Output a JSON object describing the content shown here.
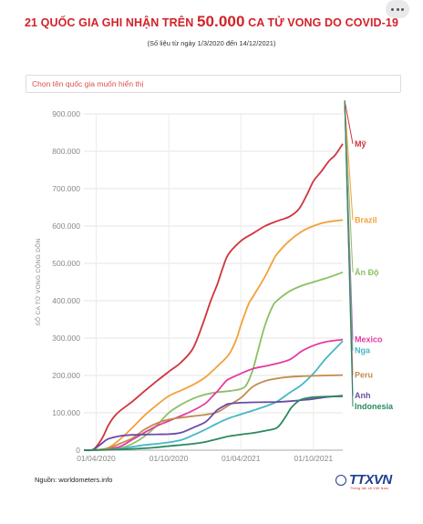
{
  "header": {
    "title_part1": "21 QUỐC GIA GHI NHẬN TRÊN ",
    "title_big": "50.000",
    "title_part2": " CA TỬ VONG DO COVID-19",
    "subtitle": "(Số liệu từ ngày 1/3/2020 đến 14/12/2021)"
  },
  "toolbar": {
    "more_icon": "more-horizontal-icon"
  },
  "selector": {
    "placeholder": "Chọn tên quốc gia muốn hiển thị"
  },
  "footer": {
    "source": "Nguồn: worldometers.info",
    "logo_text": "TTXVN",
    "logo_sub": "Thông tấn xã Việt Nam"
  },
  "chart_data": {
    "type": "line",
    "title": "21 QUỐC GIA GHI NHẬN TRÊN 50.000 CA TỬ VONG DO COVID-19",
    "subtitle": "(Số liệu từ ngày 1/3/2020 đến 14/12/2021)",
    "xlabel": "",
    "ylabel": "SỐ CA TỬ VONG CỘNG DỒN",
    "x_range": [
      "2020-03-01",
      "2021-12-14"
    ],
    "ylim": [
      0,
      900000
    ],
    "y_ticks": [
      0,
      100000,
      200000,
      300000,
      400000,
      500000,
      600000,
      700000,
      800000,
      900000
    ],
    "y_tick_labels": [
      "0",
      "100.000",
      "200.000",
      "300.000",
      "400.000",
      "500.000",
      "600.000",
      "700.000",
      "800.000",
      "900.000"
    ],
    "x_ticks": [
      "2020-04-01",
      "2020-10-01",
      "2021-04-01",
      "2021-10-01"
    ],
    "x_tick_labels": [
      "01/04/2020",
      "01/10/2020",
      "01/04/2021",
      "01/10/2021"
    ],
    "grid": true,
    "legend": "inline-right",
    "series": [
      {
        "name": "Mỹ",
        "color": "#d0343b",
        "points": [
          [
            "2020-03-01",
            0
          ],
          [
            "2020-03-25",
            2000
          ],
          [
            "2020-04-15",
            30000
          ],
          [
            "2020-05-01",
            65000
          ],
          [
            "2020-05-15",
            88000
          ],
          [
            "2020-06-01",
            106000
          ],
          [
            "2020-07-01",
            130000
          ],
          [
            "2020-08-01",
            158000
          ],
          [
            "2020-09-01",
            185000
          ],
          [
            "2020-10-01",
            210000
          ],
          [
            "2020-11-01",
            235000
          ],
          [
            "2020-12-01",
            272000
          ],
          [
            "2020-12-25",
            335000
          ],
          [
            "2021-01-15",
            400000
          ],
          [
            "2021-02-01",
            445000
          ],
          [
            "2021-02-15",
            490000
          ],
          [
            "2021-03-01",
            525000
          ],
          [
            "2021-04-01",
            560000
          ],
          [
            "2021-05-01",
            580000
          ],
          [
            "2021-06-01",
            600000
          ],
          [
            "2021-07-01",
            613000
          ],
          [
            "2021-08-01",
            625000
          ],
          [
            "2021-08-25",
            645000
          ],
          [
            "2021-09-15",
            685000
          ],
          [
            "2021-10-01",
            720000
          ],
          [
            "2021-10-20",
            745000
          ],
          [
            "2021-11-10",
            775000
          ],
          [
            "2021-11-25",
            790000
          ],
          [
            "2021-12-14",
            820000
          ]
        ]
      },
      {
        "name": "Brazil",
        "color": "#f2a13b",
        "points": [
          [
            "2020-03-01",
            0
          ],
          [
            "2020-04-01",
            1000
          ],
          [
            "2020-05-01",
            6000
          ],
          [
            "2020-06-01",
            30000
          ],
          [
            "2020-07-01",
            60000
          ],
          [
            "2020-08-01",
            93000
          ],
          [
            "2020-09-01",
            121000
          ],
          [
            "2020-10-01",
            145000
          ],
          [
            "2020-11-01",
            160000
          ],
          [
            "2020-12-01",
            175000
          ],
          [
            "2021-01-01",
            195000
          ],
          [
            "2021-02-01",
            225000
          ],
          [
            "2021-03-01",
            255000
          ],
          [
            "2021-03-20",
            295000
          ],
          [
            "2021-04-01",
            335000
          ],
          [
            "2021-04-20",
            390000
          ],
          [
            "2021-05-01",
            410000
          ],
          [
            "2021-06-01",
            465000
          ],
          [
            "2021-06-20",
            505000
          ],
          [
            "2021-07-01",
            525000
          ],
          [
            "2021-08-01",
            560000
          ],
          [
            "2021-09-01",
            585000
          ],
          [
            "2021-10-01",
            600000
          ],
          [
            "2021-11-01",
            610000
          ],
          [
            "2021-12-14",
            616000
          ]
        ]
      },
      {
        "name": "Ấn Độ",
        "color": "#8cc063",
        "points": [
          [
            "2020-03-01",
            0
          ],
          [
            "2020-04-01",
            500
          ],
          [
            "2020-05-01",
            3500
          ],
          [
            "2020-06-01",
            5500
          ],
          [
            "2020-07-01",
            17000
          ],
          [
            "2020-08-01",
            37000
          ],
          [
            "2020-09-01",
            66000
          ],
          [
            "2020-10-01",
            100000
          ],
          [
            "2020-11-01",
            122000
          ],
          [
            "2020-12-01",
            138000
          ],
          [
            "2021-01-01",
            149000
          ],
          [
            "2021-02-01",
            155000
          ],
          [
            "2021-03-01",
            158000
          ],
          [
            "2021-04-01",
            164000
          ],
          [
            "2021-04-15",
            175000
          ],
          [
            "2021-05-01",
            215000
          ],
          [
            "2021-05-15",
            270000
          ],
          [
            "2021-06-01",
            335000
          ],
          [
            "2021-06-20",
            385000
          ],
          [
            "2021-07-01",
            400000
          ],
          [
            "2021-08-01",
            425000
          ],
          [
            "2021-09-01",
            440000
          ],
          [
            "2021-10-01",
            450000
          ],
          [
            "2021-11-01",
            460000
          ],
          [
            "2021-12-14",
            476000
          ]
        ]
      },
      {
        "name": "Mexico",
        "color": "#e33ca0",
        "points": [
          [
            "2020-03-01",
            0
          ],
          [
            "2020-04-01",
            500
          ],
          [
            "2020-05-01",
            3000
          ],
          [
            "2020-06-01",
            10000
          ],
          [
            "2020-07-01",
            28000
          ],
          [
            "2020-08-01",
            47000
          ],
          [
            "2020-09-01",
            65000
          ],
          [
            "2020-10-01",
            78000
          ],
          [
            "2020-11-01",
            92000
          ],
          [
            "2020-12-01",
            106000
          ],
          [
            "2021-01-01",
            125000
          ],
          [
            "2021-01-20",
            145000
          ],
          [
            "2021-02-01",
            158000
          ],
          [
            "2021-02-20",
            182000
          ],
          [
            "2021-03-01",
            190000
          ],
          [
            "2021-04-01",
            205000
          ],
          [
            "2021-05-01",
            218000
          ],
          [
            "2021-06-01",
            225000
          ],
          [
            "2021-07-01",
            232000
          ],
          [
            "2021-08-01",
            242000
          ],
          [
            "2021-08-20",
            255000
          ],
          [
            "2021-09-01",
            265000
          ],
          [
            "2021-10-01",
            280000
          ],
          [
            "2021-11-01",
            290000
          ],
          [
            "2021-12-14",
            296000
          ]
        ]
      },
      {
        "name": "Nga",
        "color": "#45b7c4",
        "points": [
          [
            "2020-03-01",
            0
          ],
          [
            "2020-05-01",
            1000
          ],
          [
            "2020-06-01",
            4000
          ],
          [
            "2020-07-01",
            9000
          ],
          [
            "2020-08-01",
            14000
          ],
          [
            "2020-09-01",
            17000
          ],
          [
            "2020-10-01",
            21000
          ],
          [
            "2020-11-01",
            27000
          ],
          [
            "2020-12-01",
            40000
          ],
          [
            "2021-01-01",
            55000
          ],
          [
            "2021-02-01",
            72000
          ],
          [
            "2021-03-01",
            85000
          ],
          [
            "2021-04-01",
            96000
          ],
          [
            "2021-05-01",
            106000
          ],
          [
            "2021-06-01",
            117000
          ],
          [
            "2021-07-01",
            130000
          ],
          [
            "2021-08-01",
            153000
          ],
          [
            "2021-09-01",
            175000
          ],
          [
            "2021-10-01",
            205000
          ],
          [
            "2021-11-01",
            245000
          ],
          [
            "2021-12-14",
            292000
          ]
        ]
      },
      {
        "name": "Peru",
        "color": "#c18b4d",
        "points": [
          [
            "2020-03-01",
            0
          ],
          [
            "2020-04-01",
            500
          ],
          [
            "2020-05-01",
            5000
          ],
          [
            "2020-06-01",
            18000
          ],
          [
            "2020-07-01",
            32000
          ],
          [
            "2020-08-01",
            55000
          ],
          [
            "2020-09-01",
            72000
          ],
          [
            "2020-10-01",
            82000
          ],
          [
            "2020-11-01",
            87000
          ],
          [
            "2020-12-01",
            91000
          ],
          [
            "2021-01-01",
            95000
          ],
          [
            "2021-02-01",
            102000
          ],
          [
            "2021-03-01",
            120000
          ],
          [
            "2021-04-01",
            140000
          ],
          [
            "2021-05-01",
            170000
          ],
          [
            "2021-06-01",
            185000
          ],
          [
            "2021-07-01",
            192000
          ],
          [
            "2021-08-01",
            196000
          ],
          [
            "2021-09-01",
            198000
          ],
          [
            "2021-10-01",
            199000
          ],
          [
            "2021-12-14",
            201000
          ]
        ]
      },
      {
        "name": "Anh",
        "color": "#6a4ba6",
        "points": [
          [
            "2020-03-01",
            0
          ],
          [
            "2020-03-25",
            2000
          ],
          [
            "2020-04-15",
            18000
          ],
          [
            "2020-05-01",
            30000
          ],
          [
            "2020-06-01",
            38000
          ],
          [
            "2020-07-01",
            41000
          ],
          [
            "2020-08-01",
            42000
          ],
          [
            "2020-09-01",
            42500
          ],
          [
            "2020-10-01",
            43000
          ],
          [
            "2020-11-01",
            47000
          ],
          [
            "2020-12-01",
            60000
          ],
          [
            "2021-01-01",
            75000
          ],
          [
            "2021-01-20",
            95000
          ],
          [
            "2021-02-01",
            108000
          ],
          [
            "2021-02-20",
            120000
          ],
          [
            "2021-03-01",
            124000
          ],
          [
            "2021-04-01",
            127000
          ],
          [
            "2021-05-01",
            128000
          ],
          [
            "2021-06-01",
            128500
          ],
          [
            "2021-07-01",
            129000
          ],
          [
            "2021-08-01",
            131000
          ],
          [
            "2021-09-01",
            134000
          ],
          [
            "2021-10-01",
            137000
          ],
          [
            "2021-11-01",
            142000
          ],
          [
            "2021-12-14",
            146000
          ]
        ]
      },
      {
        "name": "Indonesia",
        "color": "#2a8a5e",
        "points": [
          [
            "2020-03-01",
            0
          ],
          [
            "2020-05-01",
            1000
          ],
          [
            "2020-06-01",
            2000
          ],
          [
            "2020-07-01",
            3500
          ],
          [
            "2020-08-01",
            5000
          ],
          [
            "2020-09-01",
            7500
          ],
          [
            "2020-10-01",
            11000
          ],
          [
            "2020-11-01",
            14000
          ],
          [
            "2020-12-01",
            17000
          ],
          [
            "2021-01-01",
            22000
          ],
          [
            "2021-02-01",
            30000
          ],
          [
            "2021-03-01",
            37000
          ],
          [
            "2021-04-01",
            42000
          ],
          [
            "2021-05-01",
            46000
          ],
          [
            "2021-06-01",
            52000
          ],
          [
            "2021-07-01",
            60000
          ],
          [
            "2021-07-20",
            85000
          ],
          [
            "2021-08-05",
            112000
          ],
          [
            "2021-08-20",
            128000
          ],
          [
            "2021-09-01",
            136000
          ],
          [
            "2021-10-01",
            142000
          ],
          [
            "2021-11-01",
            143500
          ],
          [
            "2021-12-14",
            144000
          ]
        ]
      }
    ],
    "labels": [
      {
        "series": "Mỹ",
        "text": "Mỹ"
      },
      {
        "series": "Brazil",
        "text": "Brazil"
      },
      {
        "series": "Ấn Độ",
        "text": "Ấn Độ"
      },
      {
        "series": "Mexico",
        "text": "Mexico"
      },
      {
        "series": "Nga",
        "text": "Nga"
      },
      {
        "series": "Peru",
        "text": "Peru"
      },
      {
        "series": "Anh",
        "text": "Anh"
      },
      {
        "series": "Indonesia",
        "text": "Indonesia"
      }
    ]
  }
}
